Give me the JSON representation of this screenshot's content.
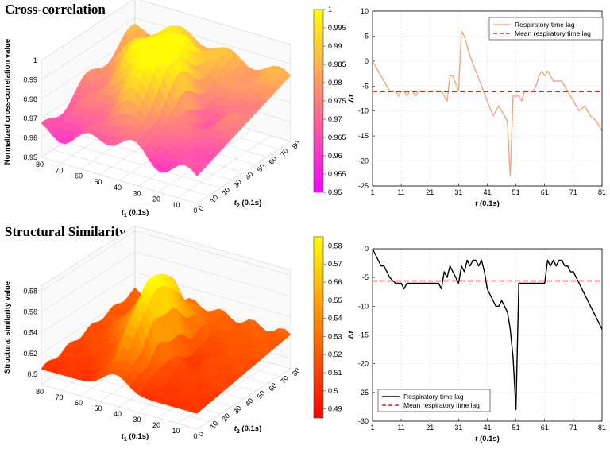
{
  "chart_data": [
    {
      "type": "surface",
      "title": "Cross-correlation",
      "zlabel": "Normalized cross-correlation value",
      "xlabel": "t1 (0.1s)",
      "ylabel": "t2 (0.1s)",
      "x_ticks": [
        "80",
        "70",
        "60",
        "50",
        "40",
        "30",
        "20",
        "10",
        "0"
      ],
      "y_ticks": [
        "0",
        "10",
        "20",
        "30",
        "40",
        "50",
        "60",
        "70",
        "80"
      ],
      "z_ticks": [
        "0.95",
        "0.96",
        "0.97",
        "0.98",
        "0.99",
        "1"
      ],
      "zlim": [
        0.95,
        1.0
      ],
      "colorbar": {
        "colormap": "spring",
        "colors": [
          "#ff00ff",
          "#ffff00"
        ],
        "range": [
          0.95,
          1.0
        ],
        "ticks": [
          "0.95",
          "0.955",
          "0.96",
          "0.965",
          "0.97",
          "0.975",
          "0.98",
          "0.985",
          "0.99",
          "0.995",
          "1"
        ]
      }
    },
    {
      "type": "line",
      "title": "",
      "xlabel": "t (0.1s)",
      "ylabel": "Δt",
      "xlim": [
        1,
        81
      ],
      "ylim": [
        -25,
        10
      ],
      "x_ticks": [
        "1",
        "11",
        "21",
        "31",
        "41",
        "51",
        "61",
        "71",
        "81"
      ],
      "y_ticks": [
        "10",
        "5",
        "0",
        "-5",
        "-10",
        "-15",
        "-20",
        "-25"
      ],
      "legend": "top-right",
      "series": [
        {
          "name": "Respiratory time lag",
          "color": "#f4a582",
          "style": "solid",
          "x": [
            1,
            3,
            5,
            7,
            9,
            10,
            11,
            12,
            13,
            14,
            15,
            16,
            17,
            18,
            19,
            21,
            23,
            25,
            27,
            28,
            29,
            31,
            32,
            33,
            35,
            37,
            39,
            41,
            43,
            45,
            46,
            47,
            48,
            49,
            50,
            51,
            52,
            53,
            54,
            55,
            56,
            57,
            58,
            59,
            60,
            61,
            62,
            63,
            64,
            65,
            67,
            69,
            71,
            73,
            75,
            77,
            79,
            81
          ],
          "values": [
            0,
            -2,
            -4,
            -6,
            -6,
            -7,
            -6,
            -6,
            -7,
            -6,
            -6,
            -7,
            -6,
            -6,
            -6,
            -6,
            -6,
            -6,
            -8,
            -3,
            -3,
            -6,
            6,
            5,
            1,
            -2,
            -5,
            -8,
            -11,
            -9,
            -10,
            -11,
            -12,
            -23,
            -7,
            -7,
            -7,
            -8,
            -6,
            -6,
            -6,
            -6,
            -5,
            -3,
            -2,
            -3,
            -2,
            -3,
            -4,
            -4,
            -4,
            -6,
            -8,
            -10,
            -9,
            -11,
            -12,
            -14
          ]
        },
        {
          "name": "Mean respiratory time lag",
          "color": "#d62728",
          "style": "dashed",
          "constant": -6.1
        }
      ]
    },
    {
      "type": "surface",
      "title": "Structural Similarity",
      "zlabel": "Structural similarity value",
      "xlabel": "t1 (0.1s)",
      "ylabel": "t2 (0.1s)",
      "x_ticks": [
        "80",
        "70",
        "60",
        "50",
        "40",
        "30",
        "20",
        "10",
        "0"
      ],
      "y_ticks": [
        "0",
        "10",
        "20",
        "30",
        "40",
        "50",
        "60",
        "70",
        "80"
      ],
      "z_ticks": [
        "0.5",
        "0.52",
        "0.54",
        "0.56",
        "0.58"
      ],
      "zlim": [
        0.49,
        0.585
      ],
      "colorbar": {
        "colormap": "autumn",
        "colors": [
          "#ff0000",
          "#ffff00"
        ],
        "range": [
          0.485,
          0.585
        ],
        "ticks": [
          "0.49",
          "0.5",
          "0.51",
          "0.52",
          "0.53",
          "0.54",
          "0.55",
          "0.56",
          "0.57",
          "0.58"
        ]
      }
    },
    {
      "type": "line",
      "title": "",
      "xlabel": "t (0.1s)",
      "ylabel": "Δt",
      "xlim": [
        1,
        81
      ],
      "ylim": [
        -30,
        0
      ],
      "x_ticks": [
        "1",
        "11",
        "21",
        "31",
        "41",
        "51",
        "61",
        "71",
        "81"
      ],
      "y_ticks": [
        "0",
        "-5",
        "-10",
        "-15",
        "-20",
        "-25",
        "-30"
      ],
      "legend": "bottom-center",
      "series": [
        {
          "name": "Respiratory time lag",
          "color": "#000000",
          "style": "solid",
          "x": [
            1,
            3,
            4,
            5,
            7,
            9,
            11,
            12,
            13,
            15,
            17,
            19,
            21,
            23,
            24,
            25,
            26,
            27,
            28,
            29,
            30,
            31,
            32,
            33,
            34,
            35,
            36,
            37,
            38,
            39,
            40,
            41,
            42,
            43,
            44,
            45,
            46,
            47,
            48,
            49,
            50,
            51,
            52,
            53,
            54,
            55,
            56,
            57,
            59,
            61,
            62,
            63,
            64,
            65,
            66,
            67,
            68,
            69,
            70,
            71,
            72,
            73,
            74,
            75,
            77,
            79,
            81
          ],
          "values": [
            0,
            -2,
            -3,
            -3,
            -5,
            -6,
            -6,
            -7,
            -6,
            -6,
            -6,
            -6,
            -6,
            -6,
            -6,
            -7,
            -4,
            -5,
            -3,
            -4,
            -5,
            -6,
            -3,
            -4,
            -2,
            -3,
            -2,
            -2,
            -3,
            -2,
            -4,
            -7,
            -8,
            -9,
            -10,
            -10,
            -9,
            -10,
            -11,
            -14,
            -19,
            -28,
            -6,
            -6,
            -6,
            -6,
            -6,
            -6,
            -6,
            -6,
            -2,
            -3,
            -2,
            -3,
            -2,
            -2,
            -3,
            -3,
            -4,
            -4,
            -5,
            -6,
            -7,
            -8,
            -10,
            -12,
            -14
          ]
        },
        {
          "name": "Mean respiratory time lag",
          "color": "#d62728",
          "style": "dashed",
          "constant": -5.6
        }
      ]
    }
  ]
}
